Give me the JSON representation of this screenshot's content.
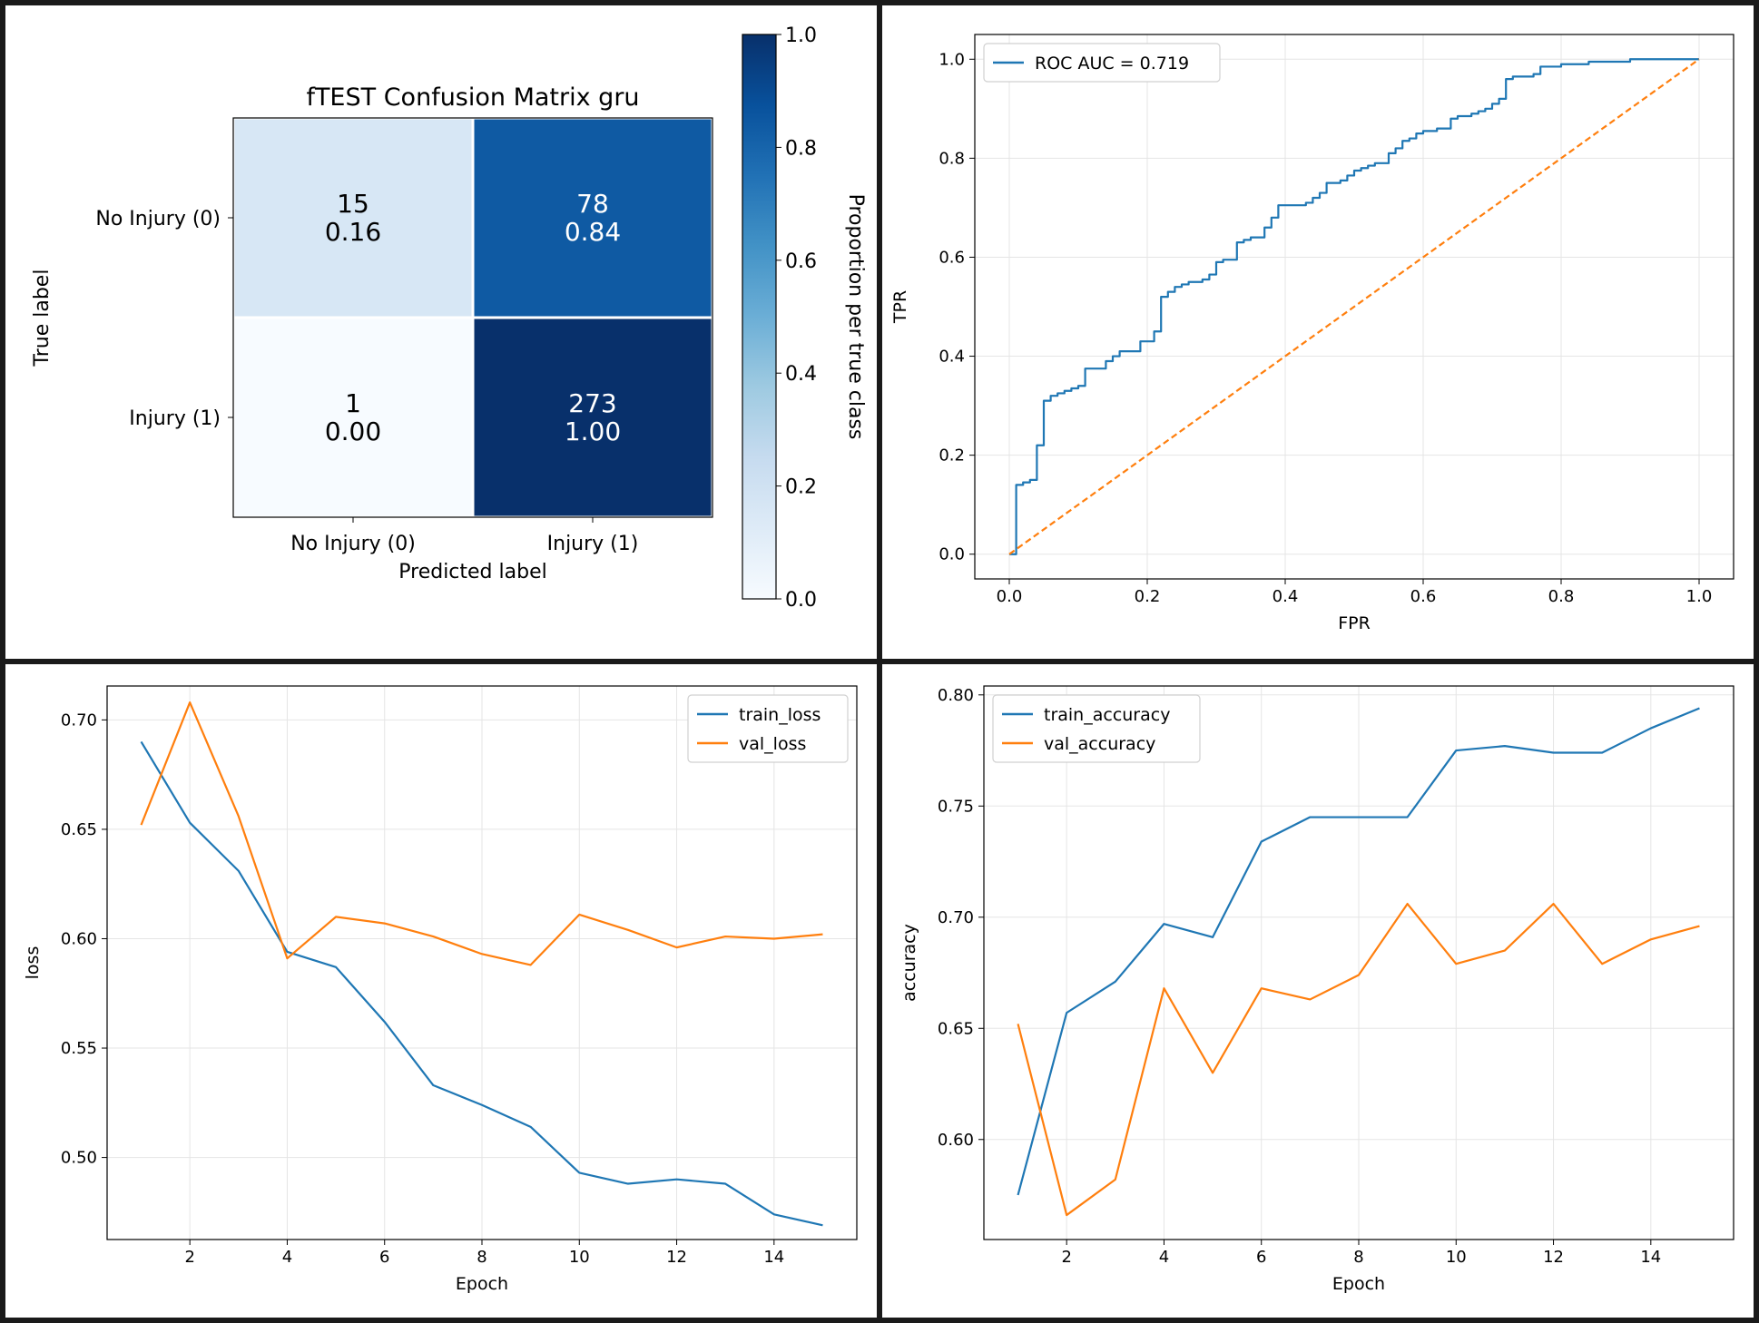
{
  "colors": {
    "blue": "#1f77b4",
    "orange": "#ff7f0e",
    "grid": "#e5e5e5",
    "cmap": [
      "#f7fbff",
      "#deebf7",
      "#c6dbef",
      "#9ecae1",
      "#6baed6",
      "#4292c6",
      "#2171b5",
      "#08519c",
      "#08306b"
    ]
  },
  "chart_data": [
    {
      "type": "heatmap",
      "title": "fTEST Confusion Matrix gru",
      "xlabel": "Predicted label",
      "ylabel": "True label",
      "x_categories": [
        "No Injury (0)",
        "Injury (1)"
      ],
      "y_categories": [
        "No Injury (0)",
        "Injury (1)"
      ],
      "counts": [
        [
          15,
          78
        ],
        [
          1,
          273
        ]
      ],
      "proportions": [
        [
          0.16,
          0.84
        ],
        [
          0.0,
          1.0
        ]
      ],
      "colorbar_label": "Proportion per true class",
      "colorbar_ticks": [
        "0.0",
        "0.2",
        "0.4",
        "0.6",
        "0.8",
        "1.0"
      ],
      "vlim": [
        0,
        1
      ]
    },
    {
      "type": "line",
      "title": "",
      "xlabel": "FPR",
      "ylabel": "TPR",
      "xlim": [
        -0.05,
        1.05
      ],
      "ylim": [
        -0.05,
        1.05
      ],
      "x_ticks": [
        "0.0",
        "0.2",
        "0.4",
        "0.6",
        "0.8",
        "1.0"
      ],
      "y_ticks": [
        "0.0",
        "0.2",
        "0.4",
        "0.6",
        "0.8",
        "1.0"
      ],
      "grid": true,
      "legend_position": "top-left",
      "series": [
        {
          "name": "ROC AUC = 0.719",
          "step": true,
          "x": [
            0.0,
            0.01,
            0.01,
            0.02,
            0.02,
            0.03,
            0.03,
            0.04,
            0.04,
            0.05,
            0.05,
            0.06,
            0.06,
            0.07,
            0.08,
            0.09,
            0.1,
            0.11,
            0.11,
            0.13,
            0.14,
            0.15,
            0.16,
            0.18,
            0.19,
            0.2,
            0.21,
            0.22,
            0.22,
            0.23,
            0.24,
            0.25,
            0.26,
            0.27,
            0.28,
            0.29,
            0.3,
            0.31,
            0.33,
            0.34,
            0.35,
            0.37,
            0.38,
            0.39,
            0.4,
            0.43,
            0.44,
            0.45,
            0.46,
            0.48,
            0.49,
            0.5,
            0.51,
            0.52,
            0.53,
            0.55,
            0.56,
            0.57,
            0.58,
            0.59,
            0.6,
            0.62,
            0.63,
            0.64,
            0.65,
            0.67,
            0.68,
            0.69,
            0.7,
            0.71,
            0.72,
            0.73,
            0.74,
            0.76,
            0.77,
            0.79,
            0.8,
            0.83,
            0.84,
            0.86,
            0.88,
            0.9,
            0.94,
            0.97,
            1.0
          ],
          "y": [
            0.0,
            0.12,
            0.14,
            0.14,
            0.145,
            0.15,
            0.15,
            0.15,
            0.22,
            0.22,
            0.31,
            0.32,
            0.32,
            0.325,
            0.33,
            0.335,
            0.34,
            0.34,
            0.375,
            0.375,
            0.39,
            0.4,
            0.41,
            0.41,
            0.43,
            0.43,
            0.45,
            0.47,
            0.52,
            0.53,
            0.54,
            0.545,
            0.55,
            0.55,
            0.555,
            0.565,
            0.59,
            0.595,
            0.63,
            0.635,
            0.64,
            0.66,
            0.68,
            0.705,
            0.705,
            0.71,
            0.72,
            0.73,
            0.75,
            0.755,
            0.765,
            0.775,
            0.78,
            0.785,
            0.79,
            0.81,
            0.82,
            0.835,
            0.84,
            0.85,
            0.855,
            0.86,
            0.86,
            0.88,
            0.885,
            0.89,
            0.895,
            0.9,
            0.91,
            0.92,
            0.96,
            0.965,
            0.965,
            0.97,
            0.985,
            0.985,
            0.99,
            0.99,
            0.995,
            0.995,
            0.995,
            1.0,
            1.0,
            1.0,
            1.0
          ]
        },
        {
          "name": "",
          "dashed": true,
          "x": [
            0.0,
            1.0
          ],
          "y": [
            0.0,
            1.0
          ]
        }
      ]
    },
    {
      "type": "line",
      "title": "",
      "xlabel": "Epoch",
      "ylabel": "loss",
      "xlim": [
        0.3,
        15.7
      ],
      "ylim": [
        0.4625,
        0.7155
      ],
      "x_ticks": [
        "2",
        "4",
        "6",
        "8",
        "10",
        "12",
        "14"
      ],
      "y_ticks": [
        "0.50",
        "0.55",
        "0.60",
        "0.65",
        "0.70"
      ],
      "grid": true,
      "legend_position": "top-right",
      "x": [
        1,
        2,
        3,
        4,
        5,
        6,
        7,
        8,
        9,
        10,
        11,
        12,
        13,
        14,
        15
      ],
      "series": [
        {
          "name": "train_loss",
          "values": [
            0.69,
            0.653,
            0.631,
            0.594,
            0.587,
            0.562,
            0.533,
            0.524,
            0.514,
            0.493,
            0.488,
            0.49,
            0.488,
            0.474,
            0.469
          ]
        },
        {
          "name": "val_loss",
          "values": [
            0.652,
            0.708,
            0.656,
            0.591,
            0.61,
            0.607,
            0.601,
            0.593,
            0.588,
            0.611,
            0.604,
            0.596,
            0.601,
            0.6,
            0.602
          ]
        }
      ]
    },
    {
      "type": "line",
      "title": "",
      "xlabel": "Epoch",
      "ylabel": "accuracy",
      "xlim": [
        0.3,
        15.7
      ],
      "ylim": [
        0.555,
        0.804
      ],
      "x_ticks": [
        "2",
        "4",
        "6",
        "8",
        "10",
        "12",
        "14"
      ],
      "y_ticks": [
        "0.60",
        "0.65",
        "0.70",
        "0.75",
        "0.80"
      ],
      "grid": true,
      "legend_position": "top-left",
      "x": [
        1,
        2,
        3,
        4,
        5,
        6,
        7,
        8,
        9,
        10,
        11,
        12,
        13,
        14,
        15
      ],
      "series": [
        {
          "name": "train_accuracy",
          "values": [
            0.575,
            0.657,
            0.671,
            0.697,
            0.691,
            0.734,
            0.745,
            0.745,
            0.745,
            0.775,
            0.777,
            0.774,
            0.774,
            0.785,
            0.794
          ]
        },
        {
          "name": "val_accuracy",
          "values": [
            0.652,
            0.566,
            0.582,
            0.668,
            0.63,
            0.668,
            0.663,
            0.674,
            0.706,
            0.679,
            0.685,
            0.706,
            0.679,
            0.69,
            0.696
          ]
        }
      ]
    }
  ]
}
